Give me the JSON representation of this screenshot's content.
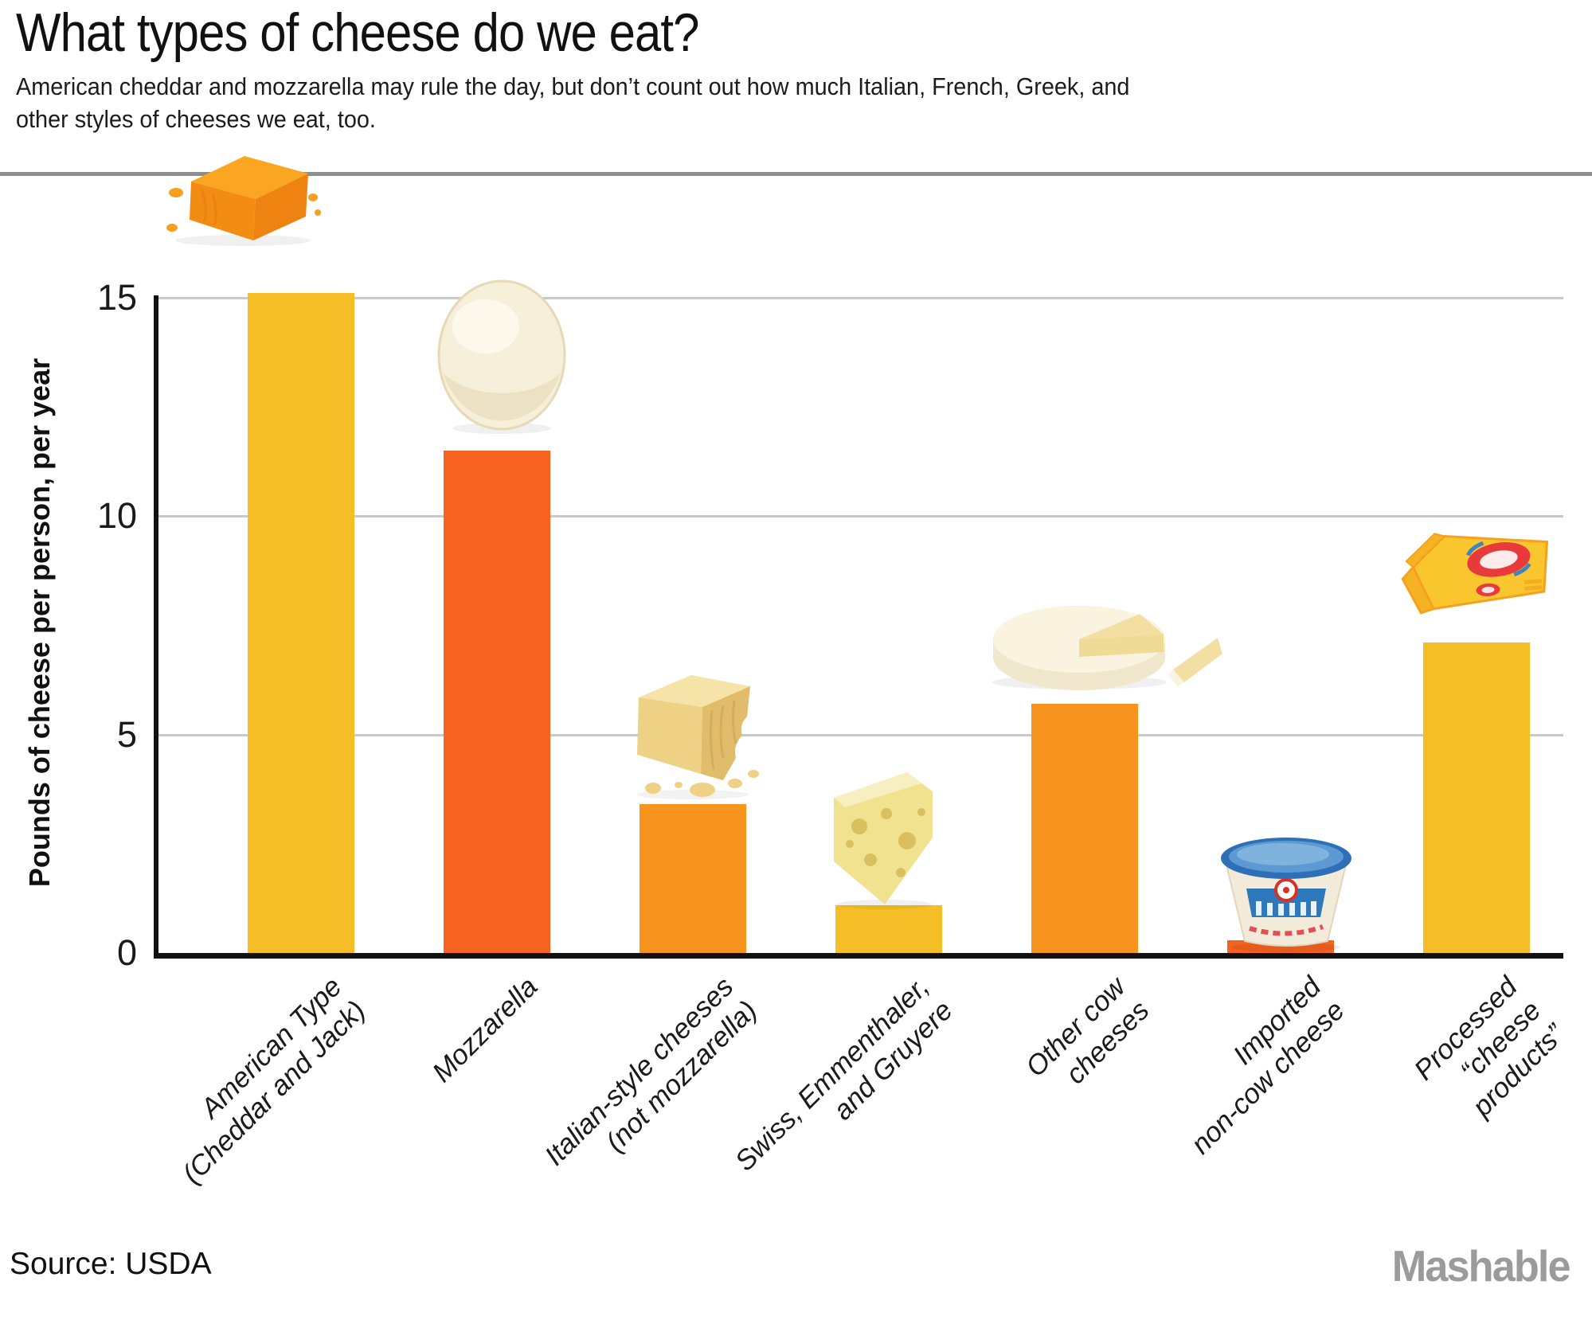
{
  "page": {
    "title": "What types of cheese do we eat?",
    "subtitle_lines": [
      "American cheddar and mozzarella may rule the day, but don’t count out how much Italian, French, Greek, and",
      "other styles of cheeses we eat, too."
    ],
    "source": "Source: USDA",
    "brand": "Mashable"
  },
  "chart_data": {
    "type": "bar",
    "title": "What types of cheese do we eat?",
    "subtitle": "American cheddar and mozzarella may rule the day, but don’t count out how much Italian, French, Greek, and other styles of cheeses we eat, too.",
    "xlabel": "",
    "ylabel": "Pounds of cheese per person, per year",
    "ylim": [
      0,
      15.5
    ],
    "yticks": [
      0,
      5,
      10,
      15
    ],
    "grid": true,
    "legend": "none",
    "categories": [
      "American Type (Cheddar and Jack)",
      "Mozzarella",
      "Italian-style cheeses (not mozzarella)",
      "Swiss, Emmenthaler, and Gruyere",
      "Other cow cheeses",
      "Imported non-cow cheese",
      "Processed “cheese products”"
    ],
    "category_lines": [
      [
        "American Type",
        "(Cheddar and Jack)"
      ],
      [
        "Mozzarella"
      ],
      [
        "Italian-style cheeses",
        "(not mozzarella)"
      ],
      [
        "Swiss, Emmenthaler,",
        "and Gruyere"
      ],
      [
        "Other cow",
        "cheeses"
      ],
      [
        "Imported",
        "non-cow cheese"
      ],
      [
        "Processed",
        "“cheese",
        "products”"
      ]
    ],
    "values": [
      15.1,
      11.5,
      3.4,
      1.1,
      5.7,
      0.3,
      7.1
    ],
    "bar_colors": [
      "#F6BE26",
      "#F6621F",
      "#F7941E",
      "#F6BE26",
      "#F7941E",
      "#F6621F",
      "#F6BE26"
    ],
    "illustrations": [
      "cheddar-block-icon",
      "mozzarella-ball-icon",
      "parmesan-chunk-icon",
      "swiss-wedge-icon",
      "brie-wheel-icon",
      "feta-tub-icon",
      "processed-cheese-box-icon"
    ],
    "source": "USDA",
    "brand": "Mashable",
    "colors": {
      "yellow": "#F6BE26",
      "orange": "#F7941E",
      "red_orange": "#F6621F",
      "gridline": "#C9C9C9",
      "divider": "#8E8E8E",
      "axis": "#111111",
      "brand_gray": "#9B9B9B"
    }
  }
}
